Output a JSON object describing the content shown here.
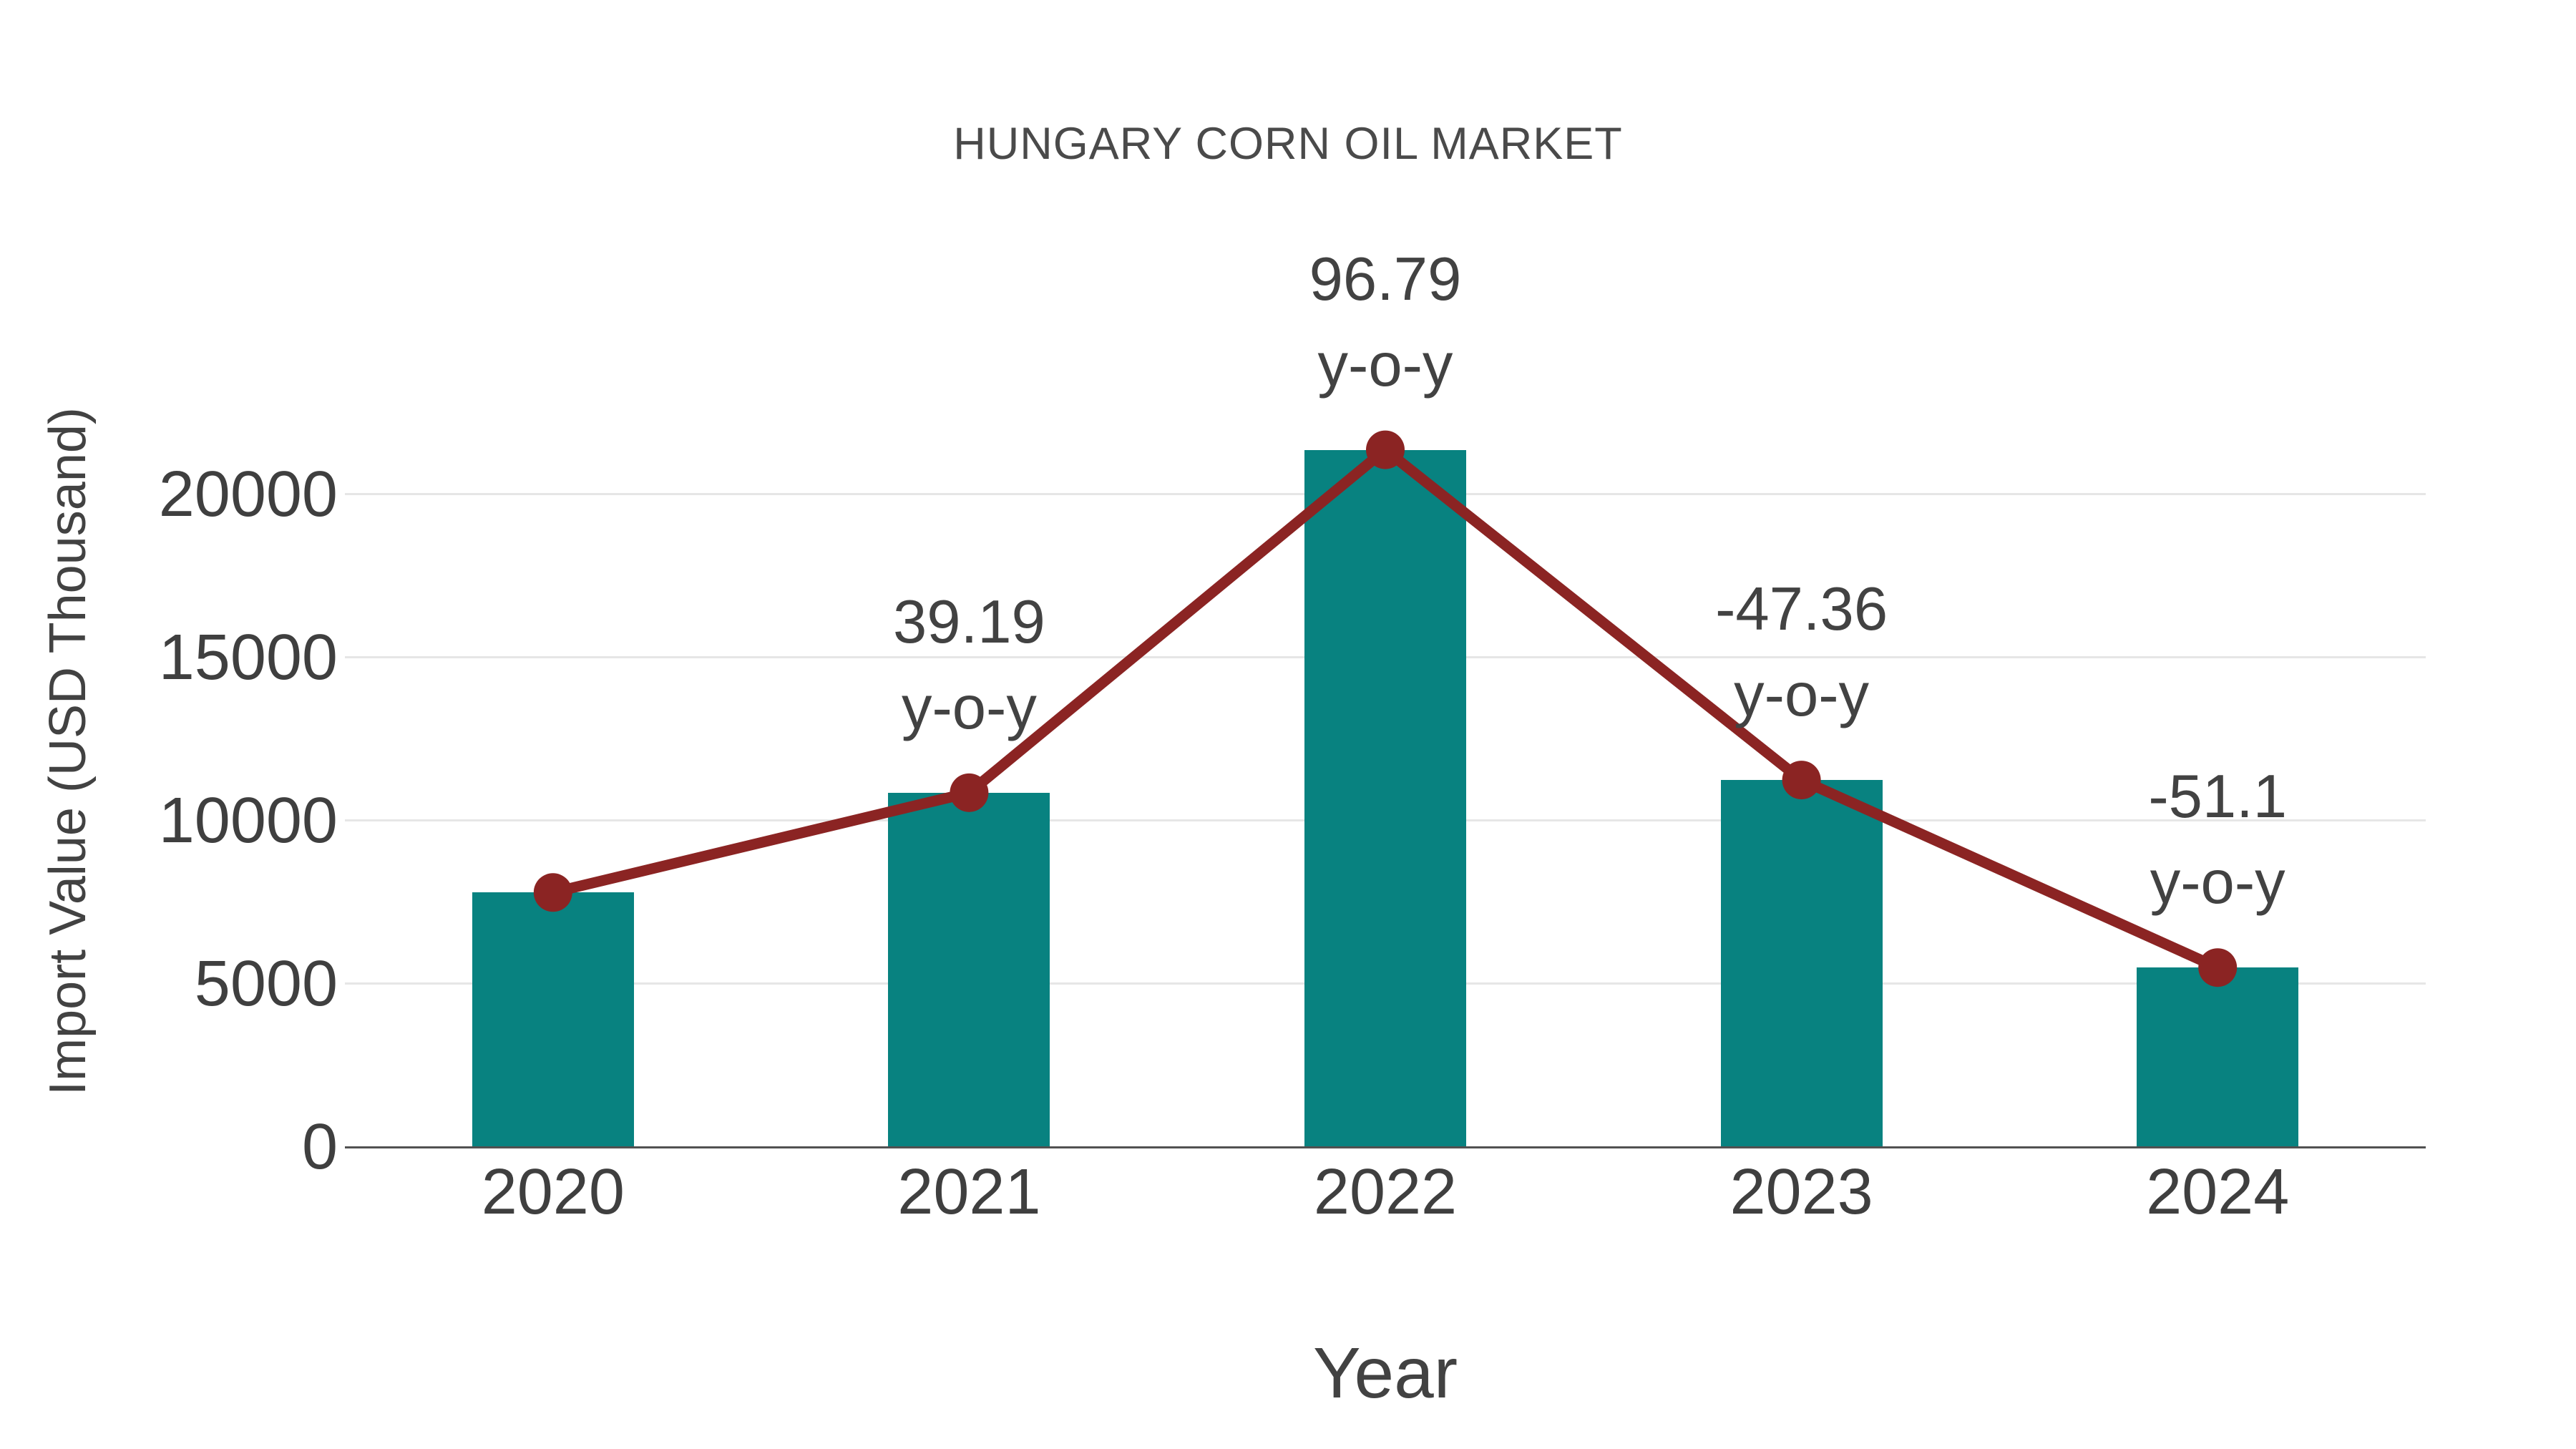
{
  "chart_data": {
    "type": "bar+line",
    "title": "HUNGARY CORN OIL MARKET",
    "xlabel": "Year",
    "ylabel": "Import Value (USD Thousand)",
    "categories": [
      "2020",
      "2021",
      "2022",
      "2023",
      "2024"
    ],
    "series": [
      {
        "name": "Import Value bars",
        "type": "bar",
        "values": [
          7800,
          10857,
          21365,
          11246,
          5499
        ]
      },
      {
        "name": "Import Value trend line",
        "type": "line",
        "values": [
          7800,
          10857,
          21365,
          11246,
          5499
        ]
      }
    ],
    "annotations": [
      {
        "category": "2021",
        "value_label": "39.19",
        "suffix_label": "y-o-y",
        "yoy_percent": 39.19
      },
      {
        "category": "2022",
        "value_label": "96.79",
        "suffix_label": "y-o-y",
        "yoy_percent": 96.79
      },
      {
        "category": "2023",
        "value_label": "-47.36",
        "suffix_label": "y-o-y",
        "yoy_percent": -47.36
      },
      {
        "category": "2024",
        "value_label": "-51.1",
        "suffix_label": "y-o-y",
        "yoy_percent": -51.1
      }
    ],
    "yticks": [
      0,
      5000,
      10000,
      15000,
      20000
    ],
    "ylim": [
      0,
      25500
    ],
    "grid": "horizontal",
    "legend": "none",
    "colors": {
      "bar": "#088280",
      "line": "#8b2423",
      "marker": "#8b2423",
      "gridline": "#e6e6e6",
      "axis_line": "#515151",
      "text": "#424242",
      "tick_text": "#3f3f3f",
      "title_text": "#4a4a4a"
    }
  }
}
